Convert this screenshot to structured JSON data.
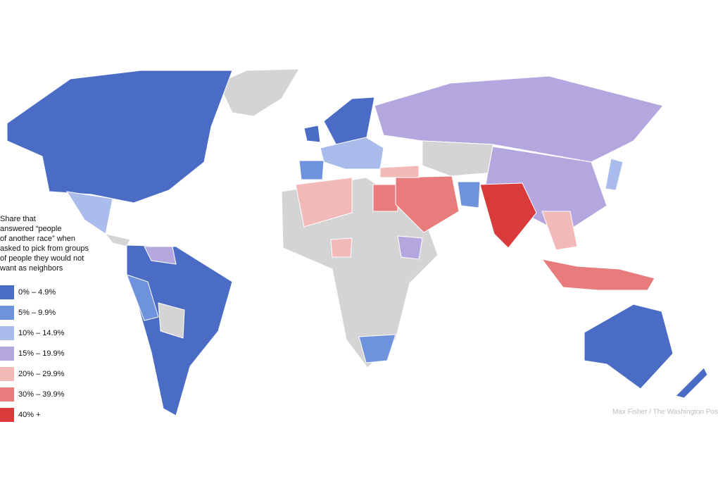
{
  "legend": {
    "title_lines": [
      "Share that",
      "answered “people",
      "of another race” when",
      "asked to pick from groups",
      "of people they would not",
      "want as neighbors"
    ],
    "items": [
      {
        "label": "0% – 4.9%",
        "color": "#4a6cc4"
      },
      {
        "label": "5% – 9.9%",
        "color": "#6f92dd"
      },
      {
        "label": "10% – 14.9%",
        "color": "#a9bcec"
      },
      {
        "label": "15% – 19.9%",
        "color": "#b4a7df"
      },
      {
        "label": "20% – 29.9%",
        "color": "#f2b9b9"
      },
      {
        "label": "30% – 39.9%",
        "color": "#e87c7c"
      },
      {
        "label": "40% +",
        "color": "#d93b3b"
      }
    ]
  },
  "credit": "Max Fisher / The Washington Post"
}
